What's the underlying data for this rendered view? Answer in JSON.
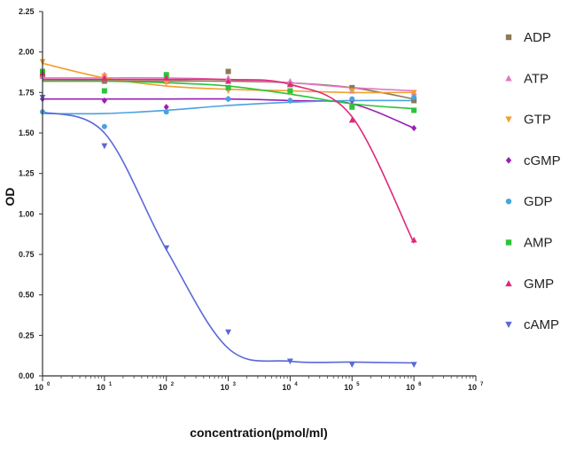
{
  "chart_data": {
    "type": "scatter",
    "title": "",
    "xlabel": "concentration(pmol/ml)",
    "ylabel": "OD",
    "x_scale": "log10",
    "xlim": [
      1,
      10000000
    ],
    "ylim": [
      0,
      2.25
    ],
    "y_ticks": [
      "0.00",
      "0.25",
      "0.50",
      "0.75",
      "1.00",
      "1.25",
      "1.50",
      "1.75",
      "2.00",
      "2.25"
    ],
    "x_ticks": [
      "10^0",
      "10^1",
      "10^2",
      "10^3",
      "10^4",
      "10^5",
      "10^6",
      "10^7"
    ],
    "grid": false,
    "legend_position": "right",
    "series": [
      {
        "name": "ADP",
        "color": "#8c7a55",
        "marker": "square",
        "x": [
          1,
          10,
          100,
          1000,
          10000,
          100000,
          1000000
        ],
        "y": [
          1.86,
          1.82,
          1.82,
          1.88,
          1.8,
          1.78,
          1.7
        ],
        "fit": [
          1.82,
          1.82,
          1.82,
          1.82,
          1.81,
          1.78,
          1.71
        ]
      },
      {
        "name": "ATP",
        "color": "#e377c2",
        "marker": "triangle",
        "x": [
          1,
          10,
          100,
          1000,
          10000,
          100000,
          1000000
        ],
        "y": [
          1.85,
          1.86,
          1.83,
          1.84,
          1.82,
          1.76,
          1.75
        ],
        "fit": [
          1.84,
          1.84,
          1.84,
          1.83,
          1.81,
          1.78,
          1.76
        ]
      },
      {
        "name": "GTP",
        "color": "#f0a030",
        "marker": "triangle-down",
        "x": [
          1,
          10,
          100,
          1000,
          10000,
          100000,
          1000000
        ],
        "y": [
          1.94,
          1.85,
          1.81,
          1.76,
          1.75,
          1.76,
          1.75
        ],
        "fit": [
          1.93,
          1.84,
          1.79,
          1.77,
          1.76,
          1.75,
          1.75
        ]
      },
      {
        "name": "cGMP",
        "color": "#9b1fb5",
        "marker": "diamond",
        "x": [
          1,
          10,
          100,
          1000,
          10000,
          100000,
          1000000
        ],
        "y": [
          1.71,
          1.7,
          1.66,
          1.71,
          1.7,
          1.7,
          1.53
        ],
        "fit": [
          1.71,
          1.71,
          1.71,
          1.71,
          1.7,
          1.68,
          1.53
        ]
      },
      {
        "name": "GDP",
        "color": "#4aa3df",
        "marker": "circle",
        "x": [
          1,
          10,
          100,
          1000,
          10000,
          100000,
          1000000
        ],
        "y": [
          1.63,
          1.54,
          1.63,
          1.71,
          1.7,
          1.71,
          1.72
        ],
        "fit": [
          1.62,
          1.62,
          1.64,
          1.67,
          1.69,
          1.7,
          1.7
        ]
      },
      {
        "name": "AMP",
        "color": "#2bc43a",
        "marker": "square",
        "x": [
          1,
          10,
          100,
          1000,
          10000,
          100000,
          1000000
        ],
        "y": [
          1.88,
          1.76,
          1.86,
          1.78,
          1.76,
          1.66,
          1.64
        ],
        "fit": [
          1.82,
          1.82,
          1.81,
          1.79,
          1.74,
          1.68,
          1.65
        ]
      },
      {
        "name": "GMP",
        "color": "#e0287a",
        "marker": "triangle",
        "x": [
          1,
          10,
          100,
          1000,
          10000,
          100000,
          1000000
        ],
        "y": [
          1.87,
          1.84,
          1.84,
          1.82,
          1.8,
          1.58,
          0.84
        ],
        "fit": [
          1.83,
          1.83,
          1.83,
          1.83,
          1.8,
          1.6,
          0.82
        ]
      },
      {
        "name": "cAMP",
        "color": "#5a68d8",
        "marker": "triangle-down",
        "x": [
          1,
          10,
          100,
          1000,
          10000,
          100000,
          1000000
        ],
        "y": [
          1.72,
          1.42,
          0.79,
          0.27,
          0.09,
          0.07,
          0.07
        ],
        "fit": [
          1.63,
          1.5,
          0.78,
          0.17,
          0.09,
          0.085,
          0.08
        ]
      }
    ]
  }
}
